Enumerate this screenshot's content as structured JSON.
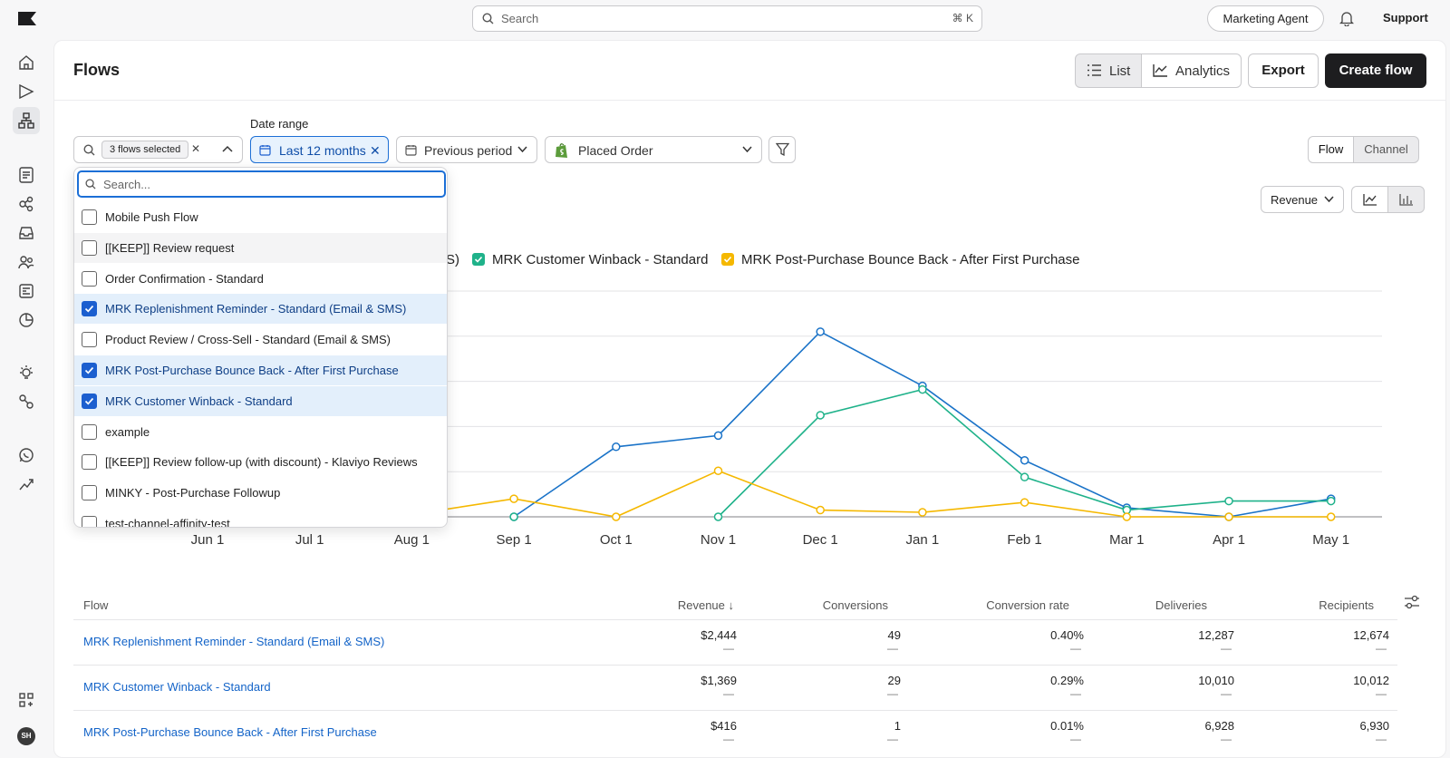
{
  "topbar": {
    "search_placeholder": "Search",
    "search_shortcut": "⌘ K",
    "agent_label": "Marketing Agent",
    "support_label": "Support"
  },
  "user": {
    "initials": "SH"
  },
  "page": {
    "title": "Flows"
  },
  "header_actions": {
    "list_label": "List",
    "analytics_label": "Analytics",
    "export_label": "Export",
    "create_label": "Create flow"
  },
  "filters": {
    "flows_chip": "3 flows selected",
    "date_range_label": "Date range",
    "date_range_value": "Last 12 months",
    "comparison_value": "Previous period",
    "metric_value": "Placed Order"
  },
  "view_toggle": {
    "flow_label": "Flow",
    "channel_label": "Channel"
  },
  "chart_controls": {
    "measure_value": "Revenue"
  },
  "dropdown": {
    "search_placeholder": "Search...",
    "options": [
      {
        "label": "Mobile Push Flow",
        "checked": false
      },
      {
        "label": "[[KEEP]] Review request",
        "checked": false
      },
      {
        "label": "Order Confirmation - Standard",
        "checked": false
      },
      {
        "label": "MRK Replenishment Reminder - Standard (Email & SMS)",
        "checked": true
      },
      {
        "label": "Product Review / Cross-Sell - Standard (Email & SMS)",
        "checked": false
      },
      {
        "label": "MRK Post-Purchase Bounce Back - After First Purchase",
        "checked": true
      },
      {
        "label": "MRK Customer Winback - Standard",
        "checked": true
      },
      {
        "label": "example",
        "checked": false
      },
      {
        "label": "[[KEEP]] Review follow-up (with discount) - Klaviyo Reviews",
        "checked": false
      },
      {
        "label": "MINKY - Post-Purchase Followup",
        "checked": false
      },
      {
        "label": "test-channel-affinity-test",
        "checked": false
      }
    ]
  },
  "legend": {
    "truncated_label": "S)",
    "items": [
      {
        "label": "MRK Customer Winback - Standard",
        "color": "#1fb28a"
      },
      {
        "label": "MRK Post-Purchase Bounce Back - After First Purchase",
        "color": "#f5b800"
      }
    ]
  },
  "chart_data": {
    "type": "line",
    "x": [
      "Jun 1",
      "Jul 1",
      "Aug 1",
      "Sep 1",
      "Oct 1",
      "Nov 1",
      "Dec 1",
      "Jan 1",
      "Feb 1",
      "Mar 1",
      "Apr 1",
      "May 1"
    ],
    "series": [
      {
        "name": "MRK Replenishment Reminder - Standard (Email & SMS)",
        "color": "#1a73c8",
        "values": [
          null,
          null,
          null,
          0,
          155,
          180,
          410,
          290,
          125,
          20,
          0,
          40
        ]
      },
      {
        "name": "MRK Customer Winback - Standard",
        "color": "#1fb28a",
        "values": [
          null,
          null,
          null,
          0,
          null,
          0,
          225,
          282,
          88,
          15,
          35,
          35
        ]
      },
      {
        "name": "MRK Post-Purchase Bounce Back - After First Purchase",
        "color": "#f5b800",
        "values": [
          null,
          null,
          5,
          40,
          0,
          102,
          15,
          10,
          32,
          0,
          0,
          0
        ]
      }
    ],
    "ylim": [
      0,
      500
    ],
    "grid": true
  },
  "table": {
    "headers": {
      "flow": "Flow",
      "revenue": "Revenue ↓",
      "conversions": "Conversions",
      "conversion_rate": "Conversion rate",
      "deliveries": "Deliveries",
      "recipients": "Recipients"
    },
    "rows": [
      {
        "flow": "MRK Replenishment Reminder - Standard (Email & SMS)",
        "revenue": "$2,444",
        "conversions": "49",
        "conversion_rate": "0.40%",
        "deliveries": "12,287",
        "recipients": "12,674",
        "dash": "—"
      },
      {
        "flow": "MRK Customer Winback - Standard",
        "revenue": "$1,369",
        "conversions": "29",
        "conversion_rate": "0.29%",
        "deliveries": "10,010",
        "recipients": "10,012",
        "dash": "—"
      },
      {
        "flow": "MRK Post-Purchase Bounce Back - After First Purchase",
        "revenue": "$416",
        "conversions": "1",
        "conversion_rate": "0.01%",
        "deliveries": "6,928",
        "recipients": "6,930",
        "dash": "—"
      }
    ]
  }
}
